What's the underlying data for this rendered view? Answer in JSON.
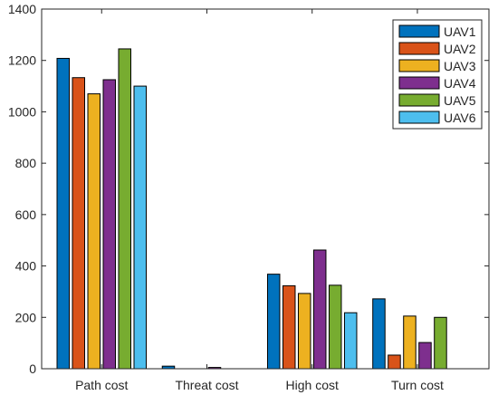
{
  "chart_data": {
    "type": "bar",
    "categories": [
      "Path cost",
      "Threat cost",
      "High cost",
      "Turn cost"
    ],
    "series": [
      {
        "name": "UAV1",
        "color": "#0072BD",
        "values": [
          1208,
          10,
          368,
          272
        ]
      },
      {
        "name": "UAV2",
        "color": "#D95319",
        "values": [
          1133,
          0,
          323,
          53
        ]
      },
      {
        "name": "UAV3",
        "color": "#EDB120",
        "values": [
          1070,
          0,
          293,
          205
        ]
      },
      {
        "name": "UAV4",
        "color": "#7E2F8E",
        "values": [
          1125,
          5,
          462,
          102
        ]
      },
      {
        "name": "UAV5",
        "color": "#77AC30",
        "values": [
          1245,
          0,
          325,
          200
        ]
      },
      {
        "name": "UAV6",
        "color": "#4DBEEE",
        "values": [
          1100,
          0,
          218,
          0
        ]
      }
    ],
    "ylim": [
      0,
      1400
    ],
    "yticks": [
      0,
      200,
      400,
      600,
      800,
      1000,
      1200,
      1400
    ],
    "title": "",
    "xlabel": "",
    "ylabel": "",
    "legend_position": "top-right",
    "grid": false
  }
}
